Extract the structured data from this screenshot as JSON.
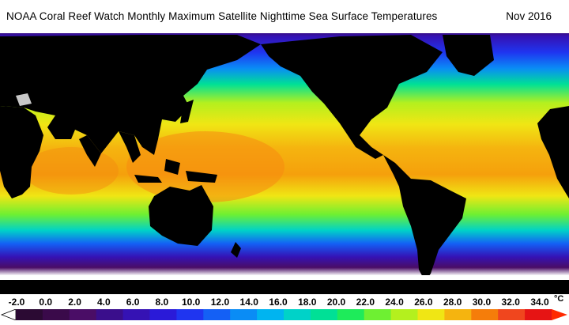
{
  "header": {
    "title": "NOAA Coral Reef Watch Monthly Maximum Satellite Nighttime Sea Surface Temperatures",
    "date": "Nov 2016"
  },
  "map": {
    "land_color": "#000000",
    "ice_color": "#ffffff",
    "lake_color": "#c8c8c8"
  },
  "colorbar": {
    "unit": "°C",
    "ticks": [
      "-2.0",
      "0.0",
      "2.0",
      "4.0",
      "6.0",
      "8.0",
      "10.0",
      "12.0",
      "14.0",
      "16.0",
      "18.0",
      "20.0",
      "22.0",
      "24.0",
      "26.0",
      "28.0",
      "30.0",
      "32.0",
      "34.0"
    ],
    "colors": [
      "#2b0a33",
      "#3a0a4a",
      "#4a0d66",
      "#3a0e8c",
      "#3512b4",
      "#2a1ad8",
      "#1f35f0",
      "#1460f5",
      "#0a8cf5",
      "#00b4f0",
      "#00d2c8",
      "#00e096",
      "#1eeb5a",
      "#6ef032",
      "#b4f01e",
      "#f0e614",
      "#f5b40f",
      "#f57d0a",
      "#f0461e",
      "#e61414"
    ],
    "low_arrow_color": "#ffffff",
    "high_arrow_color": "#ff2a00"
  }
}
